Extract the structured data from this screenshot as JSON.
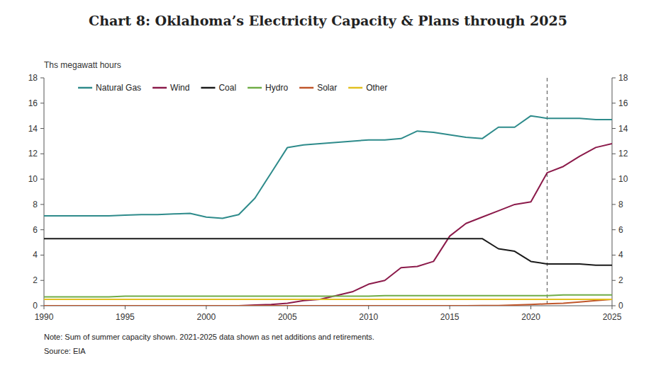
{
  "chart_data": {
    "type": "line",
    "title": "Chart 8: Oklahoma’s Electricity Capacity & Plans through 2025",
    "y_label": "Ths megawatt hours",
    "annotations": [
      "Note: Sum of summer capacity shown. 2021-2025 data shown as net additions and retirements.",
      "Source: EIA"
    ],
    "x": [
      1990,
      1991,
      1992,
      1993,
      1994,
      1995,
      1996,
      1997,
      1998,
      1999,
      2000,
      2001,
      2002,
      2003,
      2004,
      2005,
      2006,
      2007,
      2008,
      2009,
      2010,
      2011,
      2012,
      2013,
      2014,
      2015,
      2016,
      2017,
      2018,
      2019,
      2020,
      2021,
      2022,
      2023,
      2024,
      2025
    ],
    "xlim": [
      1990,
      2025
    ],
    "xticks": [
      1990,
      1995,
      2000,
      2005,
      2010,
      2015,
      2020,
      2025
    ],
    "ylim": [
      0,
      18
    ],
    "yticks": [
      0,
      2,
      4,
      6,
      8,
      10,
      12,
      14,
      16,
      18
    ],
    "y2lim": [
      0,
      18
    ],
    "y2ticks": [
      0,
      2,
      4,
      6,
      8,
      10,
      12,
      14,
      16,
      18
    ],
    "vline": 2021,
    "grid": false,
    "legend": "upper left",
    "series": [
      {
        "name": "Natural Gas",
        "color": "#2E8B8B",
        "values": [
          7.1,
          7.1,
          7.1,
          7.1,
          7.1,
          7.15,
          7.2,
          7.2,
          7.25,
          7.3,
          7.0,
          6.9,
          7.2,
          8.5,
          10.5,
          12.5,
          12.7,
          12.8,
          12.9,
          13.0,
          13.1,
          13.1,
          13.2,
          13.8,
          13.7,
          13.5,
          13.3,
          13.2,
          14.1,
          14.1,
          15.0,
          14.8,
          14.8,
          14.8,
          14.7,
          14.7
        ]
      },
      {
        "name": "Wind",
        "color": "#8B1A4A",
        "values": [
          0.0,
          0.0,
          0.0,
          0.0,
          0.0,
          0.0,
          0.0,
          0.0,
          0.0,
          0.0,
          0.0,
          0.0,
          0.0,
          0.05,
          0.1,
          0.2,
          0.4,
          0.5,
          0.8,
          1.1,
          1.7,
          2.0,
          3.0,
          3.1,
          3.5,
          5.5,
          6.5,
          7.0,
          7.5,
          8.0,
          8.2,
          10.5,
          11.0,
          11.8,
          12.5,
          12.8
        ]
      },
      {
        "name": "Coal",
        "color": "#1A1A1A",
        "values": [
          5.3,
          5.3,
          5.3,
          5.3,
          5.3,
          5.3,
          5.3,
          5.3,
          5.3,
          5.3,
          5.3,
          5.3,
          5.3,
          5.3,
          5.3,
          5.3,
          5.3,
          5.3,
          5.3,
          5.3,
          5.3,
          5.3,
          5.3,
          5.3,
          5.3,
          5.3,
          5.3,
          5.3,
          4.5,
          4.3,
          3.5,
          3.3,
          3.3,
          3.3,
          3.2,
          3.2
        ]
      },
      {
        "name": "Hydro",
        "color": "#70AD47",
        "values": [
          0.7,
          0.7,
          0.7,
          0.7,
          0.7,
          0.75,
          0.75,
          0.75,
          0.75,
          0.75,
          0.75,
          0.75,
          0.75,
          0.75,
          0.75,
          0.75,
          0.75,
          0.75,
          0.75,
          0.75,
          0.75,
          0.8,
          0.8,
          0.8,
          0.8,
          0.8,
          0.8,
          0.8,
          0.8,
          0.8,
          0.8,
          0.8,
          0.85,
          0.85,
          0.85,
          0.85
        ]
      },
      {
        "name": "Solar",
        "color": "#C0562A",
        "values": [
          0.0,
          0.0,
          0.0,
          0.0,
          0.0,
          0.0,
          0.0,
          0.0,
          0.0,
          0.0,
          0.0,
          0.0,
          0.0,
          0.0,
          0.0,
          0.0,
          0.0,
          0.0,
          0.0,
          0.0,
          0.0,
          0.0,
          0.0,
          0.0,
          0.0,
          0.0,
          0.0,
          0.01,
          0.01,
          0.05,
          0.1,
          0.15,
          0.2,
          0.3,
          0.4,
          0.5
        ]
      },
      {
        "name": "Other",
        "color": "#E2C020",
        "values": [
          0.5,
          0.5,
          0.5,
          0.5,
          0.5,
          0.5,
          0.5,
          0.5,
          0.5,
          0.5,
          0.5,
          0.5,
          0.5,
          0.5,
          0.5,
          0.5,
          0.5,
          0.5,
          0.5,
          0.5,
          0.5,
          0.5,
          0.5,
          0.5,
          0.5,
          0.5,
          0.5,
          0.5,
          0.5,
          0.5,
          0.5,
          0.5,
          0.5,
          0.5,
          0.5,
          0.5
        ]
      }
    ]
  }
}
